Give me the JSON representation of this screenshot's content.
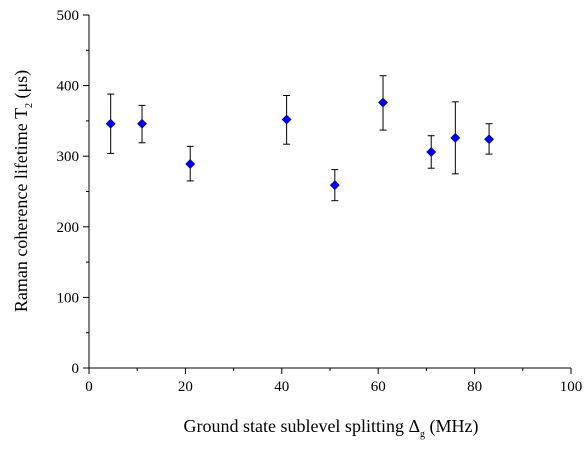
{
  "chart_data": {
    "type": "scatter",
    "title": "",
    "xlabel": {
      "main": "Ground state sublevel splitting Δ",
      "subscript": "g",
      "suffix": " (MHz)"
    },
    "ylabel": {
      "main": "Raman coherence lifetime T",
      "subscript": "2",
      "suffix": " (μs)"
    },
    "xlim": [
      0,
      100
    ],
    "ylim": [
      0,
      500
    ],
    "x_ticks": [
      0,
      20,
      40,
      60,
      80,
      100
    ],
    "y_ticks": [
      0,
      100,
      200,
      300,
      400,
      500
    ],
    "x_tick_labels": [
      "0",
      "20",
      "40",
      "60",
      "80",
      "100"
    ],
    "y_tick_labels": [
      "0",
      "100",
      "200",
      "300",
      "400",
      "500"
    ],
    "grid": false,
    "legend": "none",
    "marker": "diamond",
    "marker_color": "#0000ee",
    "series": [
      {
        "points": [
          {
            "x": 4.5,
            "y": 346,
            "err_low": 304,
            "err_high": 388
          },
          {
            "x": 11,
            "y": 346,
            "err_low": 319,
            "err_high": 372
          },
          {
            "x": 21,
            "y": 289,
            "err_low": 265,
            "err_high": 314
          },
          {
            "x": 41,
            "y": 352,
            "err_low": 317,
            "err_high": 386
          },
          {
            "x": 51,
            "y": 259,
            "err_low": 237,
            "err_high": 281
          },
          {
            "x": 61,
            "y": 376,
            "err_low": 337,
            "err_high": 414
          },
          {
            "x": 71,
            "y": 306,
            "err_low": 283,
            "err_high": 329
          },
          {
            "x": 76,
            "y": 326,
            "err_low": 275,
            "err_high": 377
          },
          {
            "x": 83,
            "y": 324,
            "err_low": 303,
            "err_high": 346
          }
        ]
      }
    ]
  }
}
